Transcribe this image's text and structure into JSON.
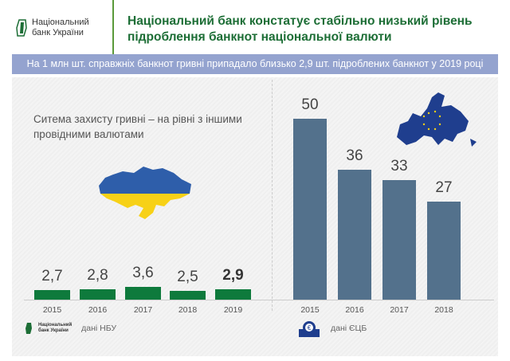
{
  "header": {
    "logo_line1": "Національний",
    "logo_line2": "банк України",
    "title": "Національний банк констатує стабільно низький рівень підроблення банкнот національної валюти"
  },
  "banner": "На 1 млн шт. справжніх банкнот гривні припадало близько 2,9 шт. підроблених банкнот у 2019 році",
  "subtitle": "Ситема захисту гривні – на рівні з іншими провідними валютами",
  "colors": {
    "green": "#0e7a3c",
    "slate": "#53718c",
    "banner": "#94a3cf",
    "title": "#1d6e36"
  },
  "chart_data": [
    {
      "type": "bar",
      "categories": [
        "2015",
        "2016",
        "2017",
        "2018",
        "2019"
      ],
      "values": [
        2.7,
        2.8,
        3.6,
        2.5,
        2.9
      ],
      "labels": [
        "2,7",
        "2,8",
        "3,6",
        "2,5",
        "2,9"
      ],
      "highlight": "2019",
      "color": "#0e7a3c",
      "source": "дані НБУ",
      "source_logo": [
        "Національний",
        "банк України"
      ]
    },
    {
      "type": "bar",
      "categories": [
        "2015",
        "2016",
        "2017",
        "2018"
      ],
      "values": [
        50,
        36,
        33,
        27
      ],
      "labels": [
        "50",
        "36",
        "33",
        "27"
      ],
      "color": "#53718c",
      "source": "дані ЄЦБ"
    }
  ]
}
